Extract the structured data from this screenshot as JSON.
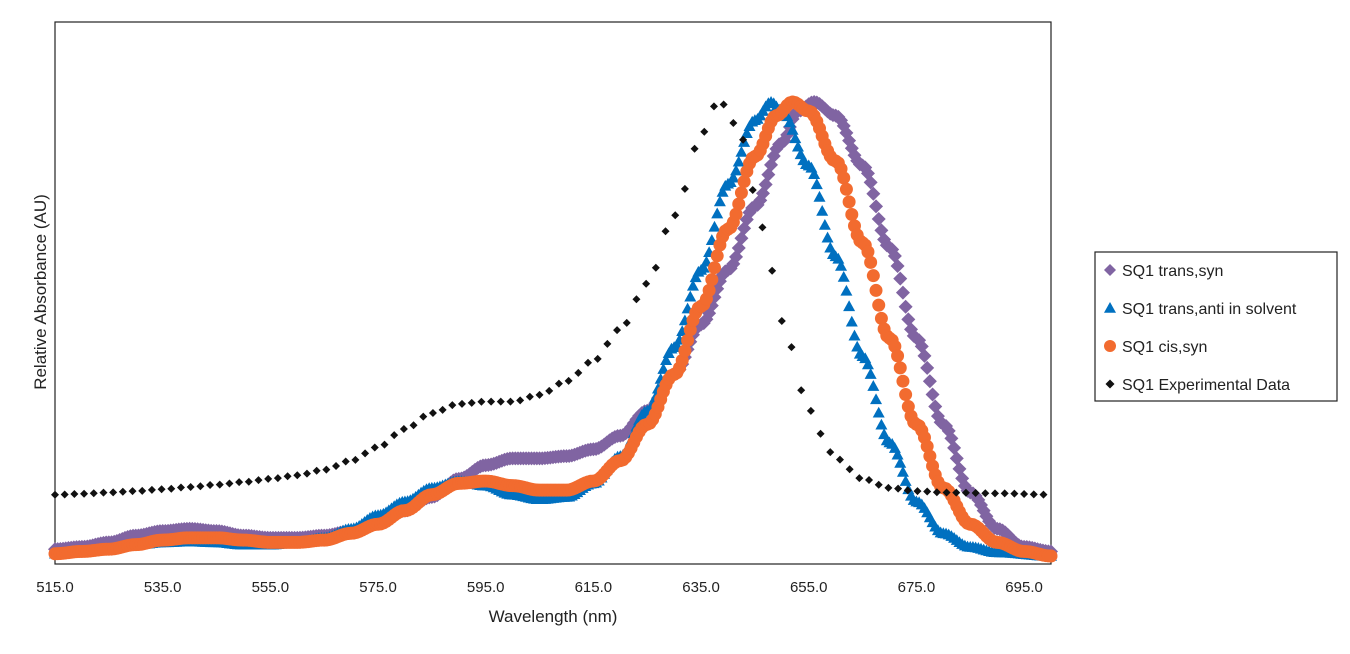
{
  "chart_data": {
    "type": "scatter",
    "title": "",
    "xlabel": "Wavelength (nm)",
    "ylabel": "Relative Absorbance (AU)",
    "xlim": [
      515,
      700
    ],
    "ylim": [
      0,
      1.2
    ],
    "x_ticks": [
      "515.0",
      "535.0",
      "555.0",
      "575.0",
      "595.0",
      "615.0",
      "635.0",
      "655.0",
      "675.0",
      "695.0"
    ],
    "grid": false,
    "legend_position": "right",
    "series": [
      {
        "name": "SQ1 trans,syn",
        "marker": "diamond",
        "color": "#8064A2",
        "points": [
          [
            515,
            0.015
          ],
          [
            520,
            0.02
          ],
          [
            525,
            0.03
          ],
          [
            530,
            0.045
          ],
          [
            535,
            0.055
          ],
          [
            540,
            0.06
          ],
          [
            545,
            0.055
          ],
          [
            550,
            0.045
          ],
          [
            555,
            0.04
          ],
          [
            560,
            0.04
          ],
          [
            565,
            0.045
          ],
          [
            570,
            0.055
          ],
          [
            575,
            0.075
          ],
          [
            580,
            0.1
          ],
          [
            585,
            0.13
          ],
          [
            590,
            0.17
          ],
          [
            595,
            0.2
          ],
          [
            600,
            0.215
          ],
          [
            605,
            0.215
          ],
          [
            610,
            0.22
          ],
          [
            615,
            0.235
          ],
          [
            620,
            0.265
          ],
          [
            625,
            0.32
          ],
          [
            630,
            0.4
          ],
          [
            635,
            0.51
          ],
          [
            640,
            0.63
          ],
          [
            645,
            0.77
          ],
          [
            650,
            0.91
          ],
          [
            653,
            0.98
          ],
          [
            656,
            1.0
          ],
          [
            660,
            0.97
          ],
          [
            665,
            0.86
          ],
          [
            670,
            0.68
          ],
          [
            675,
            0.48
          ],
          [
            680,
            0.29
          ],
          [
            685,
            0.14
          ],
          [
            690,
            0.06
          ],
          [
            695,
            0.02
          ],
          [
            700,
            0.01
          ]
        ]
      },
      {
        "name": "SQ1 trans,anti in solvent",
        "marker": "triangle",
        "color": "#0070C0",
        "points": [
          [
            515,
            0.005
          ],
          [
            520,
            0.01
          ],
          [
            525,
            0.015
          ],
          [
            530,
            0.025
          ],
          [
            535,
            0.03
          ],
          [
            540,
            0.032
          ],
          [
            545,
            0.03
          ],
          [
            550,
            0.025
          ],
          [
            555,
            0.025
          ],
          [
            560,
            0.03
          ],
          [
            565,
            0.04
          ],
          [
            570,
            0.06
          ],
          [
            575,
            0.09
          ],
          [
            580,
            0.12
          ],
          [
            585,
            0.15
          ],
          [
            590,
            0.165
          ],
          [
            595,
            0.155
          ],
          [
            600,
            0.135
          ],
          [
            605,
            0.125
          ],
          [
            610,
            0.13
          ],
          [
            615,
            0.16
          ],
          [
            620,
            0.22
          ],
          [
            625,
            0.32
          ],
          [
            630,
            0.46
          ],
          [
            635,
            0.63
          ],
          [
            640,
            0.82
          ],
          [
            645,
            0.96
          ],
          [
            648,
            1.0
          ],
          [
            650,
            0.98
          ],
          [
            655,
            0.86
          ],
          [
            660,
            0.66
          ],
          [
            665,
            0.44
          ],
          [
            670,
            0.25
          ],
          [
            675,
            0.12
          ],
          [
            680,
            0.05
          ],
          [
            685,
            0.02
          ],
          [
            690,
            0.008
          ],
          [
            700,
            0.0
          ]
        ]
      },
      {
        "name": "SQ1 cis,syn",
        "marker": "circle",
        "color": "#F26B2F",
        "points": [
          [
            515,
            0.005
          ],
          [
            520,
            0.01
          ],
          [
            525,
            0.015
          ],
          [
            530,
            0.025
          ],
          [
            535,
            0.035
          ],
          [
            540,
            0.04
          ],
          [
            545,
            0.04
          ],
          [
            550,
            0.035
          ],
          [
            555,
            0.03
          ],
          [
            560,
            0.03
          ],
          [
            565,
            0.035
          ],
          [
            570,
            0.05
          ],
          [
            575,
            0.07
          ],
          [
            580,
            0.1
          ],
          [
            585,
            0.135
          ],
          [
            590,
            0.16
          ],
          [
            595,
            0.165
          ],
          [
            600,
            0.155
          ],
          [
            605,
            0.145
          ],
          [
            610,
            0.145
          ],
          [
            615,
            0.165
          ],
          [
            620,
            0.21
          ],
          [
            625,
            0.29
          ],
          [
            630,
            0.4
          ],
          [
            635,
            0.55
          ],
          [
            640,
            0.72
          ],
          [
            645,
            0.88
          ],
          [
            649,
            0.97
          ],
          [
            652,
            1.0
          ],
          [
            655,
            0.98
          ],
          [
            660,
            0.87
          ],
          [
            665,
            0.69
          ],
          [
            670,
            0.48
          ],
          [
            675,
            0.29
          ],
          [
            680,
            0.15
          ],
          [
            685,
            0.07
          ],
          [
            690,
            0.03
          ],
          [
            695,
            0.01
          ],
          [
            700,
            0.0
          ]
        ]
      },
      {
        "name": "SQ1 Experimental Data",
        "marker": "diamond-small",
        "color": "#111111",
        "points": [
          [
            515,
            0.135
          ],
          [
            520,
            0.137
          ],
          [
            525,
            0.14
          ],
          [
            530,
            0.143
          ],
          [
            535,
            0.147
          ],
          [
            540,
            0.152
          ],
          [
            545,
            0.157
          ],
          [
            550,
            0.163
          ],
          [
            555,
            0.17
          ],
          [
            560,
            0.178
          ],
          [
            565,
            0.19
          ],
          [
            570,
            0.21
          ],
          [
            575,
            0.24
          ],
          [
            580,
            0.28
          ],
          [
            585,
            0.315
          ],
          [
            590,
            0.335
          ],
          [
            595,
            0.34
          ],
          [
            600,
            0.34
          ],
          [
            605,
            0.355
          ],
          [
            610,
            0.385
          ],
          [
            615,
            0.43
          ],
          [
            620,
            0.5
          ],
          [
            625,
            0.6
          ],
          [
            630,
            0.75
          ],
          [
            635,
            0.92
          ],
          [
            637,
            0.99
          ],
          [
            639,
            0.995
          ],
          [
            642,
            0.94
          ],
          [
            645,
            0.8
          ],
          [
            648,
            0.63
          ],
          [
            651,
            0.48
          ],
          [
            654,
            0.36
          ],
          [
            657,
            0.27
          ],
          [
            660,
            0.215
          ],
          [
            665,
            0.17
          ],
          [
            670,
            0.15
          ],
          [
            675,
            0.143
          ],
          [
            680,
            0.14
          ],
          [
            690,
            0.138
          ],
          [
            700,
            0.135
          ]
        ]
      }
    ]
  }
}
